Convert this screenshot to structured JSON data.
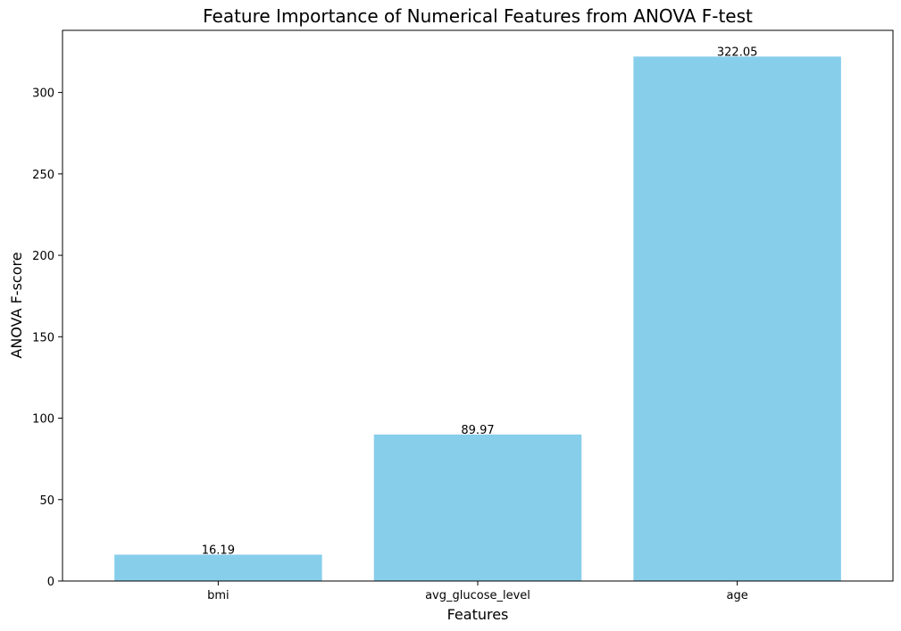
{
  "chart_data": {
    "type": "bar",
    "title": "Feature Importance of Numerical Features from ANOVA F-test",
    "xlabel": "Features",
    "ylabel": "ANOVA F-score",
    "categories": [
      "bmi",
      "avg_glucose_level",
      "age"
    ],
    "values": [
      16.19,
      89.97,
      322.05
    ],
    "data_labels": [
      "16.19",
      "89.97",
      "322.05"
    ],
    "ylim": [
      0,
      338.15
    ],
    "yticks": [
      0,
      50,
      100,
      150,
      200,
      250,
      300
    ],
    "grid": false,
    "legend": "none",
    "bar_color": "#87CEEB"
  }
}
